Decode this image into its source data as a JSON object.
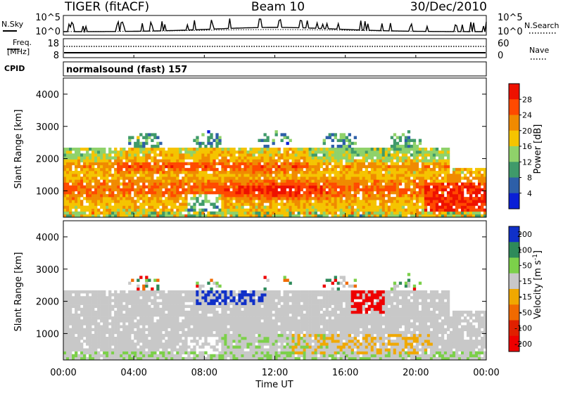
{
  "header": {
    "station": "TIGER (fitACF)",
    "beam": "Beam 10",
    "date": "30/Dec/2010"
  },
  "nsky_panel": {
    "left_label": "N.Sky",
    "left_ticks": [
      "10^5",
      "10^0"
    ],
    "right_ticks": [
      "10^5",
      "10^0"
    ],
    "right_label": "N.Search"
  },
  "freq_panel": {
    "left_label_1": "Freq.",
    "left_label_2": "[MHz]",
    "left_ticks": [
      "18",
      "8"
    ],
    "right_ticks": [
      "60",
      "0"
    ],
    "right_label": "Nave"
  },
  "cpid_panel": {
    "left_label": "CPID",
    "program": "normalsound (fast) 157"
  },
  "chart_data": [
    {
      "type": "heatmap",
      "name": "power-panel",
      "ylabel": "Slant Range [km]",
      "ylim": [
        180,
        4500
      ],
      "yticks": [
        "1000",
        "2000",
        "3000",
        "4000"
      ],
      "ytick_values": [
        1000,
        2000,
        3000,
        4000
      ],
      "xlim_hours": [
        0,
        24
      ],
      "colorbar": {
        "label": "Power [dB]",
        "ticks": [
          "4",
          "8",
          "12",
          "16",
          "20",
          "24",
          "28"
        ],
        "tick_values": [
          4,
          8,
          12,
          16,
          20,
          24,
          28
        ],
        "range": [
          0,
          32
        ],
        "colors": [
          "#0a1fd6",
          "#2d5fa8",
          "#3f9a6a",
          "#8fd26a",
          "#f5c400",
          "#f08a00",
          "#ff4a00",
          "#ee1100"
        ]
      }
    },
    {
      "type": "heatmap",
      "name": "velocity-panel",
      "ylabel": "Slant Range [km]",
      "ylim": [
        180,
        4500
      ],
      "yticks": [
        "1000",
        "2000",
        "3000",
        "4000"
      ],
      "ytick_values": [
        1000,
        2000,
        3000,
        4000
      ],
      "xlabel": "Time UT",
      "xticks": [
        "00:00",
        "04:00",
        "08:00",
        "12:00",
        "16:00",
        "20:00",
        "00:00"
      ],
      "xtick_hours": [
        0,
        4,
        8,
        12,
        16,
        20,
        24
      ],
      "colorbar": {
        "label": "Velocity [m s",
        "label_sup": "-1",
        "label_end": "]",
        "ticks": [
          "200",
          "100",
          "50",
          "15",
          "-15",
          "-50",
          "-100",
          "-200"
        ],
        "tick_values": [
          200,
          100,
          50,
          15,
          -15,
          -50,
          -100,
          -200
        ],
        "colors": [
          "#1030c8",
          "#2e8a5a",
          "#7cd04a",
          "#c8c8c8",
          "#f0a800",
          "#f06a00",
          "#e02000",
          "#ee0000"
        ]
      }
    }
  ]
}
